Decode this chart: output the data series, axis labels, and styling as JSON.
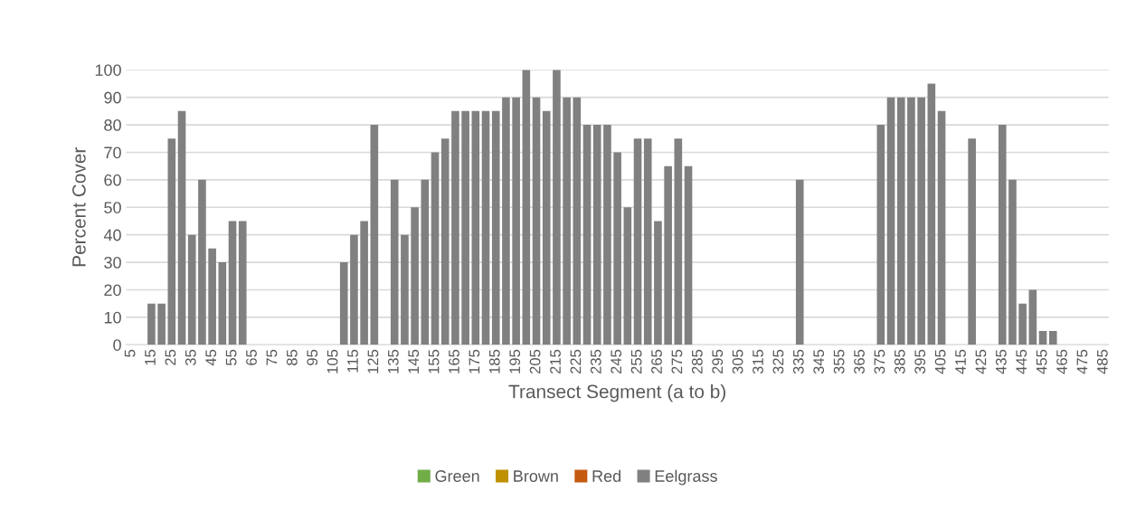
{
  "chart_data": {
    "type": "bar",
    "xlabel": "Transect Segment (a to b)",
    "ylabel": "Percent Cover",
    "categories": [
      "5",
      null,
      "15",
      null,
      "25",
      null,
      "35",
      null,
      "45",
      null,
      "55",
      null,
      "65",
      null,
      "75",
      null,
      "85",
      null,
      "95",
      null,
      "105",
      null,
      "115",
      null,
      "125",
      null,
      "135",
      null,
      "145",
      null,
      "155",
      null,
      "165",
      null,
      "175",
      null,
      "185",
      null,
      "195",
      null,
      "205",
      null,
      "215",
      null,
      "225",
      null,
      "235",
      null,
      "245",
      null,
      "255",
      null,
      "265",
      null,
      "275",
      null,
      "285",
      null,
      "295",
      null,
      "305",
      null,
      "315",
      null,
      "325",
      null,
      "335",
      null,
      "345",
      null,
      "355",
      null,
      "365",
      null,
      "375",
      null,
      "385",
      null,
      "395",
      null,
      "405",
      null,
      "415",
      null,
      "425",
      null,
      "435",
      null,
      "445",
      null,
      "455",
      null,
      "465",
      null,
      "475",
      null,
      "485"
    ],
    "series": [
      {
        "name": "Green",
        "color": "#70ad47",
        "values": [
          null,
          null,
          null,
          null,
          null,
          null,
          null,
          null,
          null,
          null,
          null,
          null,
          null,
          null,
          null,
          null,
          null,
          null,
          null,
          null,
          null,
          null,
          null,
          null,
          null,
          null,
          null,
          null,
          null,
          null,
          null,
          null,
          null,
          null,
          null,
          null,
          null,
          null,
          null,
          null,
          null,
          null,
          null,
          null,
          null,
          null,
          null,
          null,
          null,
          null,
          null,
          null,
          null,
          null,
          null,
          null,
          null,
          null,
          null,
          null,
          null,
          null,
          null,
          null,
          null,
          null,
          null,
          null,
          null,
          null,
          null,
          null,
          null,
          null,
          null,
          null,
          null,
          null,
          null,
          null,
          null,
          null,
          null,
          null,
          null,
          null,
          null,
          null,
          null,
          null,
          null,
          null,
          null,
          null,
          null,
          null,
          null
        ]
      },
      {
        "name": "Brown",
        "color": "#bf9000",
        "values": [
          null,
          null,
          null,
          null,
          null,
          null,
          null,
          null,
          null,
          null,
          null,
          null,
          null,
          null,
          null,
          null,
          null,
          null,
          null,
          null,
          null,
          null,
          null,
          null,
          null,
          null,
          null,
          null,
          null,
          null,
          null,
          null,
          null,
          null,
          null,
          null,
          null,
          null,
          null,
          null,
          null,
          null,
          null,
          null,
          null,
          null,
          null,
          null,
          null,
          null,
          null,
          null,
          null,
          null,
          null,
          null,
          null,
          null,
          null,
          null,
          null,
          null,
          null,
          null,
          null,
          null,
          null,
          null,
          null,
          null,
          null,
          null,
          null,
          null,
          null,
          null,
          null,
          null,
          null,
          null,
          null,
          null,
          null,
          null,
          null,
          null,
          null,
          null,
          null,
          null,
          null,
          null,
          null,
          null,
          null,
          null,
          null
        ]
      },
      {
        "name": "Red",
        "color": "#c55a11",
        "values": [
          null,
          null,
          null,
          null,
          null,
          null,
          null,
          null,
          null,
          null,
          null,
          null,
          null,
          null,
          null,
          null,
          null,
          null,
          null,
          null,
          null,
          null,
          null,
          null,
          null,
          null,
          null,
          null,
          null,
          null,
          null,
          null,
          null,
          null,
          null,
          null,
          null,
          null,
          null,
          null,
          null,
          null,
          null,
          null,
          null,
          null,
          null,
          null,
          null,
          null,
          null,
          null,
          null,
          null,
          null,
          null,
          null,
          null,
          null,
          null,
          null,
          null,
          null,
          null,
          null,
          null,
          null,
          null,
          null,
          null,
          null,
          null,
          null,
          null,
          null,
          null,
          null,
          null,
          null,
          null,
          null,
          null,
          null,
          null,
          null,
          null,
          null,
          null,
          null,
          null,
          null,
          null,
          null,
          null,
          null,
          null,
          null
        ]
      },
      {
        "name": "Eelgrass",
        "color": "#808080",
        "values": [
          0,
          0,
          15,
          15,
          75,
          85,
          40,
          60,
          35,
          30,
          45,
          45,
          0,
          0,
          0,
          0,
          0,
          0,
          0,
          0,
          0,
          30,
          40,
          45,
          80,
          0,
          60,
          40,
          50,
          60,
          70,
          75,
          85,
          85,
          85,
          85,
          85,
          90,
          90,
          100,
          90,
          85,
          100,
          90,
          90,
          80,
          80,
          80,
          70,
          50,
          75,
          75,
          45,
          65,
          75,
          65,
          0,
          0,
          0,
          0,
          0,
          0,
          0,
          0,
          0,
          0,
          60,
          0,
          0,
          0,
          0,
          0,
          0,
          0,
          80,
          90,
          90,
          90,
          90,
          95,
          85,
          0,
          0,
          75,
          0,
          0,
          80,
          60,
          15,
          20,
          5,
          5,
          0,
          0,
          0,
          0,
          0
        ]
      }
    ],
    "ylim": [
      0,
      100
    ],
    "yticks": [
      0,
      10,
      20,
      30,
      40,
      50,
      60,
      70,
      80,
      90,
      100
    ],
    "grid": "y",
    "legend": "bottom"
  }
}
